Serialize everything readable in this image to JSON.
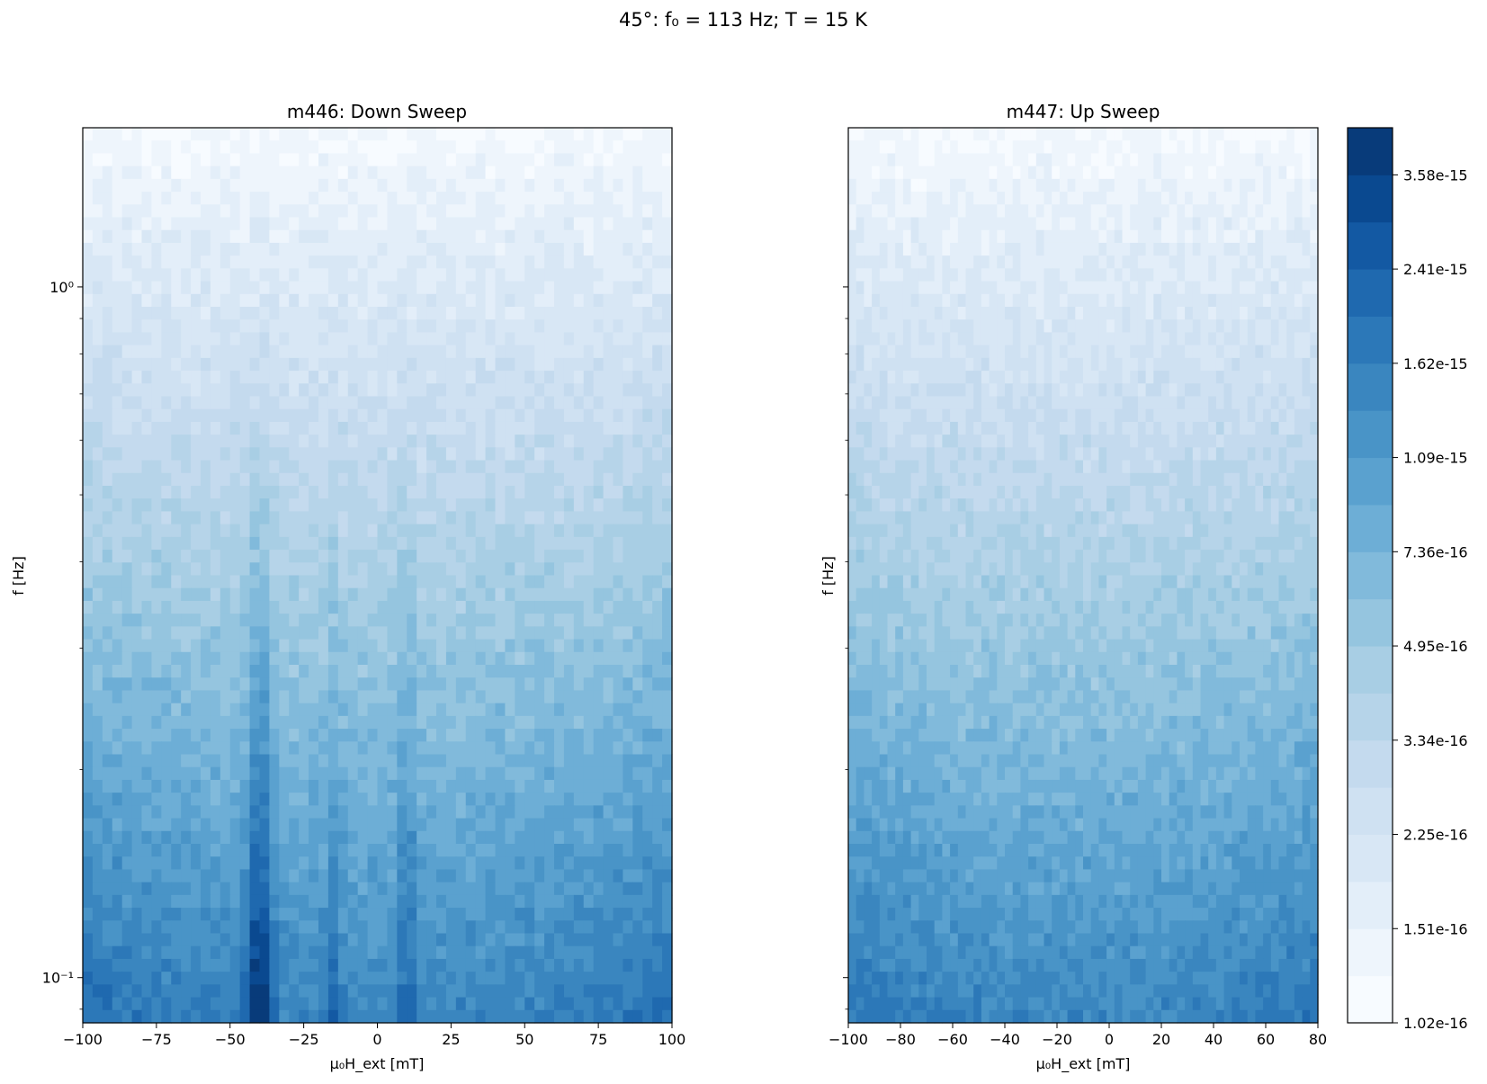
{
  "figure": {
    "suptitle": "45°: f₀ = 113 Hz; T = 15 K"
  },
  "chart_data": [
    {
      "type": "heatmap",
      "title": "m446: Down Sweep",
      "xlabel": "μ₀H_ext [mT]",
      "ylabel": "f [Hz]",
      "xlim": [
        -100,
        100
      ],
      "ylim": [
        0.086,
        1.7
      ],
      "yscale": "log",
      "x_ticks": [
        -100,
        -75,
        -50,
        -25,
        0,
        25,
        50,
        75,
        100
      ],
      "x_tick_labels": [
        "−100",
        "−75",
        "−50",
        "−25",
        "0",
        "25",
        "50",
        "75",
        "100"
      ],
      "y_ticks": [
        0.1,
        1
      ],
      "y_tick_labels": [
        "10⁻¹",
        "10⁰"
      ],
      "colormap": "Blues",
      "features": [
        {
          "x": -40,
          "strength": 1.0,
          "width": 4
        },
        {
          "x": -15,
          "strength": 0.35,
          "width": 3
        },
        {
          "x": 10,
          "strength": 0.45,
          "width": 3
        }
      ],
      "edge_boost": 0.2
    },
    {
      "type": "heatmap",
      "title": "m447: Up Sweep",
      "xlabel": "μ₀H_ext [mT]",
      "ylabel": "f [Hz]",
      "xlim": [
        -100,
        80
      ],
      "ylim": [
        0.086,
        1.7
      ],
      "yscale": "log",
      "x_ticks": [
        -100,
        -80,
        -60,
        -40,
        -20,
        0,
        20,
        40,
        60,
        80
      ],
      "x_tick_labels": [
        "−100",
        "−80",
        "−60",
        "−40",
        "−20",
        "0",
        "20",
        "40",
        "60",
        "80"
      ],
      "y_ticks": [
        0.1,
        1
      ],
      "y_tick_labels": [
        "10⁻¹",
        "10⁰"
      ],
      "colormap": "Blues",
      "features": [],
      "edge_boost": 0.15
    }
  ],
  "colorbar": {
    "levels": [
      "1.02e-16",
      "1.51e-16",
      "2.25e-16",
      "3.34e-16",
      "4.95e-16",
      "7.36e-16",
      "1.09e-15",
      "1.62e-15",
      "2.41e-15",
      "3.58e-15"
    ],
    "n_bands": 19,
    "colors": [
      "#f7fbff",
      "#eef5fc",
      "#e3eef9",
      "#d8e7f5",
      "#cfe1f2",
      "#c4daee",
      "#b6d4e9",
      "#a8cee4",
      "#95c5df",
      "#81badb",
      "#6daed6",
      "#5aa1cf",
      "#4994c7",
      "#3a86bf",
      "#2c78b8",
      "#1f69af",
      "#1359a3",
      "#0a4990",
      "#083b7a"
    ]
  }
}
